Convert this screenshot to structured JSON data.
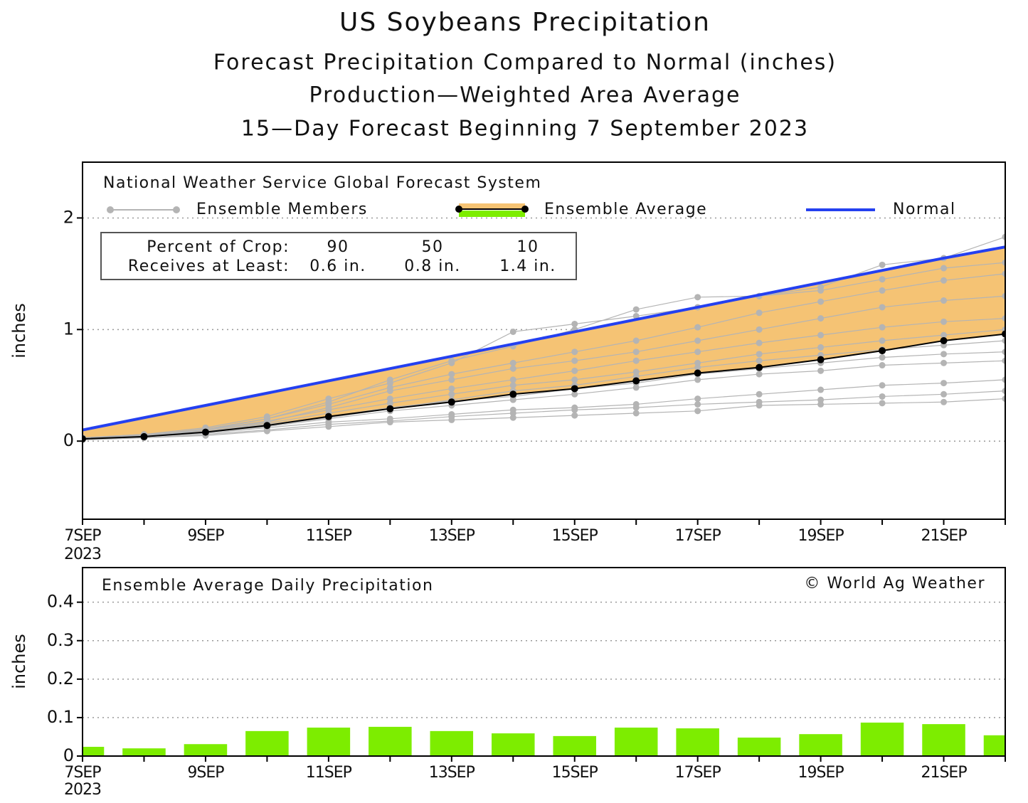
{
  "chart_data": [
    {
      "type": "line",
      "title": "US Soybeans Precipitation",
      "subtitle": [
        "Forecast Precipitation Compared to Normal (inches)",
        "Production—Weighted Area Average",
        "15—Day Forecast Beginning 7 September 2023"
      ],
      "source": "National Weather Service Global Forecast System",
      "ylabel": "inches",
      "categories": [
        "7SEP",
        null,
        "9SEP",
        null,
        "11SEP",
        null,
        "13SEP",
        null,
        "15SEP",
        null,
        "17SEP",
        null,
        "19SEP",
        null,
        "21SEP",
        null
      ],
      "year_label": "2023",
      "ylim": [
        -0.7,
        2.5
      ],
      "yticks": [
        0,
        1,
        2
      ],
      "grid": true,
      "members": {
        "name": "Ensemble Members",
        "color": "#b4b4b4",
        "values": [
          [
            0.01,
            0.03,
            0.05,
            0.09,
            0.13,
            0.17,
            0.19,
            0.21,
            0.23,
            0.25,
            0.27,
            0.32,
            0.33,
            0.34,
            0.35,
            0.38
          ],
          [
            0.02,
            0.03,
            0.06,
            0.1,
            0.15,
            0.18,
            0.22,
            0.25,
            0.28,
            0.3,
            0.33,
            0.35,
            0.37,
            0.4,
            0.42,
            0.45
          ],
          [
            0.02,
            0.04,
            0.07,
            0.12,
            0.17,
            0.2,
            0.24,
            0.28,
            0.3,
            0.33,
            0.38,
            0.42,
            0.46,
            0.5,
            0.52,
            0.55
          ],
          [
            0.02,
            0.04,
            0.08,
            0.13,
            0.2,
            0.27,
            0.32,
            0.37,
            0.42,
            0.48,
            0.55,
            0.6,
            0.63,
            0.68,
            0.7,
            0.72
          ],
          [
            0.02,
            0.05,
            0.09,
            0.15,
            0.22,
            0.3,
            0.36,
            0.4,
            0.47,
            0.52,
            0.6,
            0.65,
            0.7,
            0.75,
            0.78,
            0.8
          ],
          [
            0.03,
            0.05,
            0.08,
            0.14,
            0.21,
            0.29,
            0.37,
            0.45,
            0.5,
            0.58,
            0.66,
            0.72,
            0.77,
            0.82,
            0.86,
            0.9
          ],
          [
            0.02,
            0.04,
            0.09,
            0.16,
            0.25,
            0.34,
            0.42,
            0.5,
            0.55,
            0.62,
            0.7,
            0.78,
            0.84,
            0.9,
            0.95,
            1.0
          ],
          [
            0.03,
            0.06,
            0.1,
            0.18,
            0.28,
            0.38,
            0.47,
            0.55,
            0.63,
            0.72,
            0.8,
            0.88,
            0.95,
            1.02,
            1.07,
            1.1
          ],
          [
            0.03,
            0.05,
            0.1,
            0.17,
            0.3,
            0.45,
            0.55,
            0.65,
            0.72,
            0.8,
            0.9,
            1.0,
            1.1,
            1.2,
            1.26,
            1.3
          ],
          [
            0.02,
            0.05,
            0.11,
            0.2,
            0.33,
            0.48,
            0.6,
            0.7,
            0.8,
            0.9,
            1.02,
            1.15,
            1.25,
            1.35,
            1.44,
            1.5
          ],
          [
            0.03,
            0.06,
            0.12,
            0.22,
            0.38,
            0.52,
            0.7,
            0.98,
            1.05,
            1.12,
            1.2,
            1.3,
            1.35,
            1.45,
            1.55,
            1.6
          ],
          [
            0.02,
            0.05,
            0.1,
            0.2,
            0.35,
            0.55,
            0.72,
            0.85,
            1.0,
            1.18,
            1.29,
            1.3,
            1.38,
            1.58,
            1.64,
            1.83
          ]
        ]
      },
      "series": [
        {
          "name": "Ensemble Average",
          "color": "#000000",
          "fill": "#f5c374",
          "values": [
            0.02,
            0.04,
            0.08,
            0.14,
            0.22,
            0.29,
            0.35,
            0.42,
            0.47,
            0.54,
            0.61,
            0.66,
            0.73,
            0.81,
            0.9,
            0.96
          ]
        },
        {
          "name": "Normal",
          "color": "#2440f0",
          "values": [
            0.1,
            0.21,
            0.32,
            0.43,
            0.54,
            0.65,
            0.76,
            0.87,
            0.98,
            1.09,
            1.2,
            1.31,
            1.42,
            1.53,
            1.64,
            1.74
          ]
        }
      ],
      "crop_table": {
        "rows": [
          [
            "Percent of Crop:",
            "90",
            "50",
            "10"
          ],
          [
            "Receives at Least:",
            "0.6 in.",
            "0.8 in.",
            "1.4 in."
          ]
        ]
      }
    },
    {
      "type": "bar",
      "title": "Ensemble Average Daily Precipitation",
      "credit": "© World Ag Weather",
      "ylabel": "inches",
      "categories": [
        "7SEP",
        null,
        "9SEP",
        null,
        "11SEP",
        null,
        "13SEP",
        null,
        "15SEP",
        null,
        "17SEP",
        null,
        "19SEP",
        null,
        "21SEP",
        null
      ],
      "year_label": "2023",
      "ylim": [
        0,
        0.49
      ],
      "yticks": [
        0,
        0.1,
        0.2,
        0.3,
        0.4
      ],
      "grid": true,
      "color": "#7ded00",
      "values": [
        0.024,
        0.02,
        0.031,
        0.065,
        0.074,
        0.076,
        0.065,
        0.059,
        0.052,
        0.074,
        0.072,
        0.048,
        0.057,
        0.087,
        0.083,
        0.054
      ]
    }
  ]
}
